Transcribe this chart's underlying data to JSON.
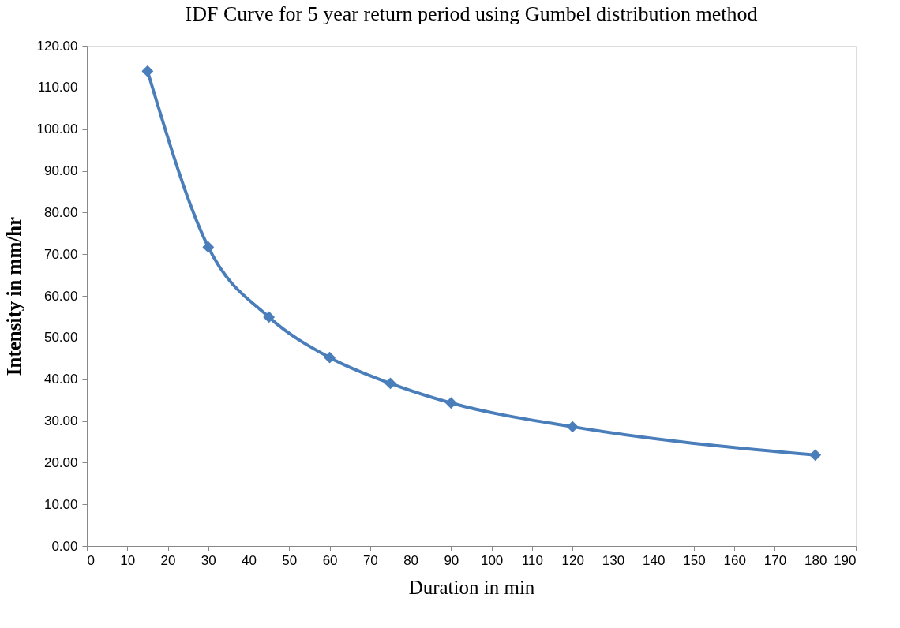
{
  "chart_data": {
    "type": "line",
    "title": "IDF Curve for 5 year return period using Gumbel distribution method",
    "xlabel": "Duration in min",
    "ylabel": "Intensity in mm/hr",
    "x": [
      15,
      30,
      45,
      60,
      75,
      90,
      120,
      180
    ],
    "series": [
      {
        "color": "#4a7ebb",
        "values": [
          113.9,
          71.7,
          54.9,
          45.2,
          39.0,
          34.3,
          28.6,
          21.8
        ]
      }
    ],
    "xlim": [
      0,
      190
    ],
    "xticks": [
      0,
      10,
      20,
      30,
      40,
      50,
      60,
      70,
      80,
      90,
      100,
      110,
      120,
      130,
      140,
      150,
      160,
      170,
      180,
      190
    ],
    "ylim": [
      0,
      120
    ],
    "yticks": [
      {
        "value": 0,
        "label": "0.00"
      },
      {
        "value": 10,
        "label": "10.00"
      },
      {
        "value": 20,
        "label": "20.00"
      },
      {
        "value": 30,
        "label": "30.00"
      },
      {
        "value": 40,
        "label": "40.00"
      },
      {
        "value": 50,
        "label": "50.00"
      },
      {
        "value": 60,
        "label": "60.00"
      },
      {
        "value": 70,
        "label": "70.00"
      },
      {
        "value": 80,
        "label": "80.00"
      },
      {
        "value": 90,
        "label": "90.00"
      },
      {
        "value": 100,
        "label": "100.00"
      },
      {
        "value": 110,
        "label": "110.00"
      },
      {
        "value": 120,
        "label": "120.00"
      }
    ],
    "grid": false,
    "marker": "diamond",
    "line_style": "solid"
  }
}
